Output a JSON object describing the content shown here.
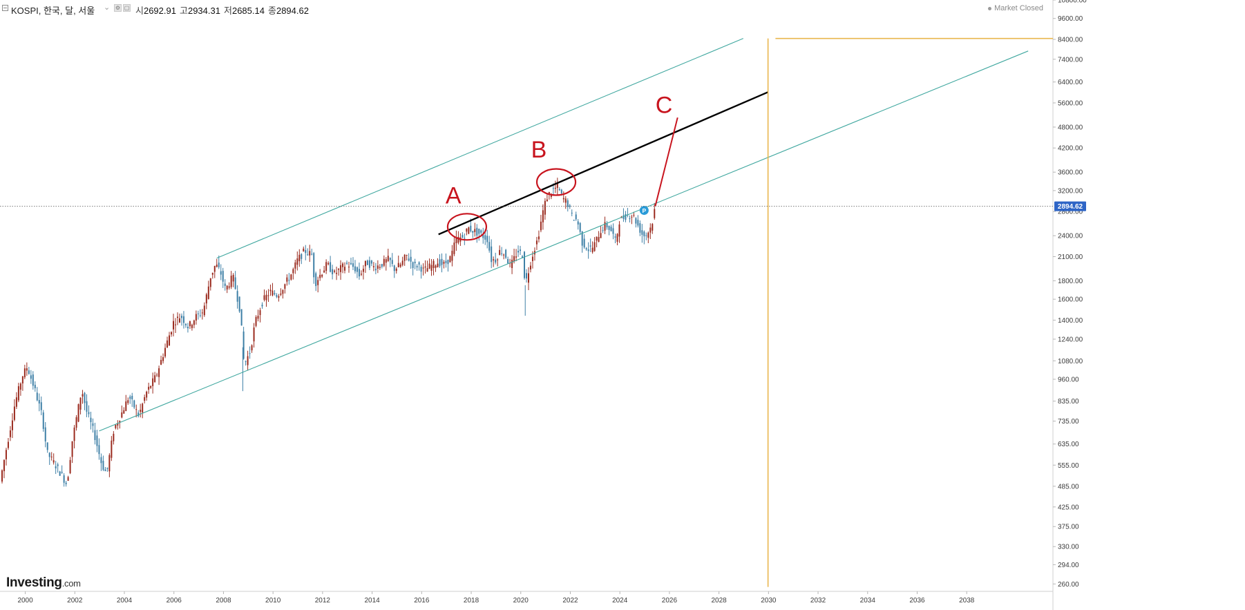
{
  "header": {
    "collapse_icon": "minus-box-icon",
    "symbol": "KOSPI, 한국, 달, 서울",
    "dropdown_icon": "chevron-down-icon",
    "settings_icon": "gear-icon",
    "ohlc": [
      {
        "label": "시",
        "value": "2692.91"
      },
      {
        "label": "고",
        "value": "2934.31"
      },
      {
        "label": "저",
        "value": "2685.14"
      },
      {
        "label": "종",
        "value": "2894.62"
      }
    ],
    "market_status": "Market Closed"
  },
  "logo": {
    "text": "Investing",
    "suffix": ".com"
  },
  "chart_data": {
    "type": "candlestick",
    "y_scale": "log",
    "ylim": [
      248,
      10800
    ],
    "xlim": [
      1999.0,
      2041.5
    ],
    "y_ticks": [
      "10800.00",
      "9600.00",
      "8400.00",
      "7400.00",
      "6400.00",
      "5600.00",
      "4800.00",
      "4200.00",
      "3600.00",
      "3200.00",
      "2800.00",
      "2400.00",
      "2100.00",
      "1800.00",
      "1600.00",
      "1400.00",
      "1240.00",
      "1080.00",
      "960.00",
      "835.00",
      "735.00",
      "635.00",
      "555.00",
      "485.00",
      "425.00",
      "375.00",
      "330.00",
      "294.00",
      "260.00"
    ],
    "x_ticks": [
      "2000",
      "2002",
      "2004",
      "2006",
      "2008",
      "2010",
      "2012",
      "2014",
      "2016",
      "2018",
      "2020",
      "2022",
      "2024",
      "2026",
      "2028",
      "2030",
      "2032",
      "2034",
      "2036",
      "2038"
    ],
    "last_price": {
      "label": "2894.62",
      "value": 2894.62,
      "color": "#2e65c6"
    },
    "colors": {
      "up": "#9a2a1e",
      "down": "#3d7fa6",
      "channel": "#3fa79f",
      "resistance": "#000000",
      "projection": "#c8141e",
      "target": "#e9b64d"
    },
    "anchors": [
      [
        1999.0,
        500
      ],
      [
        1999.3,
        640
      ],
      [
        1999.6,
        820
      ],
      [
        1999.9,
        980
      ],
      [
        2000.1,
        1040
      ],
      [
        2000.4,
        900
      ],
      [
        2000.7,
        760
      ],
      [
        2000.9,
        600
      ],
      [
        2001.2,
        560
      ],
      [
        2001.5,
        520
      ],
      [
        2001.7,
        490
      ],
      [
        2001.9,
        640
      ],
      [
        2002.3,
        900
      ],
      [
        2002.5,
        780
      ],
      [
        2002.8,
        680
      ],
      [
        2003.1,
        560
      ],
      [
        2003.3,
        525
      ],
      [
        2003.6,
        700
      ],
      [
        2003.9,
        770
      ],
      [
        2004.2,
        860
      ],
      [
        2004.4,
        810
      ],
      [
        2004.6,
        760
      ],
      [
        2004.9,
        880
      ],
      [
        2005.3,
        980
      ],
      [
        2005.8,
        1250
      ],
      [
        2006.0,
        1380
      ],
      [
        2006.3,
        1440
      ],
      [
        2006.6,
        1340
      ],
      [
        2006.9,
        1430
      ],
      [
        2007.2,
        1480
      ],
      [
        2007.5,
        1850
      ],
      [
        2007.7,
        2000
      ],
      [
        2007.9,
        1900
      ],
      [
        2008.1,
        1700
      ],
      [
        2008.4,
        1850
      ],
      [
        2008.7,
        1480
      ],
      [
        2008.85,
        1050
      ],
      [
        2009.1,
        1150
      ],
      [
        2009.3,
        1380
      ],
      [
        2009.6,
        1580
      ],
      [
        2009.9,
        1680
      ],
      [
        2010.2,
        1640
      ],
      [
        2010.5,
        1760
      ],
      [
        2010.8,
        1900
      ],
      [
        2011.0,
        2050
      ],
      [
        2011.3,
        2180
      ],
      [
        2011.6,
        2120
      ],
      [
        2011.7,
        1760
      ],
      [
        2011.9,
        1860
      ],
      [
        2012.2,
        2000
      ],
      [
        2012.5,
        1880
      ],
      [
        2012.8,
        1960
      ],
      [
        2013.0,
        2000
      ],
      [
        2013.3,
        1960
      ],
      [
        2013.5,
        1860
      ],
      [
        2013.8,
        2030
      ],
      [
        2014.1,
        1960
      ],
      [
        2014.4,
        2000
      ],
      [
        2014.7,
        2070
      ],
      [
        2014.9,
        1940
      ],
      [
        2015.2,
        2000
      ],
      [
        2015.4,
        2120
      ],
      [
        2015.7,
        1980
      ],
      [
        2015.9,
        1990
      ],
      [
        2016.1,
        1920
      ],
      [
        2016.4,
        1980
      ],
      [
        2016.7,
        2030
      ],
      [
        2016.9,
        1990
      ],
      [
        2017.2,
        2090
      ],
      [
        2017.4,
        2340
      ],
      [
        2017.7,
        2380
      ],
      [
        2017.9,
        2520
      ],
      [
        2018.1,
        2480
      ],
      [
        2018.4,
        2420
      ],
      [
        2018.7,
        2340
      ],
      [
        2018.8,
        2060
      ],
      [
        2019.0,
        2060
      ],
      [
        2019.2,
        2190
      ],
      [
        2019.4,
        2120
      ],
      [
        2019.6,
        1970
      ],
      [
        2019.9,
        2180
      ],
      [
        2020.1,
        2120
      ],
      [
        2020.2,
        1750
      ],
      [
        2020.45,
        2080
      ],
      [
        2020.7,
        2350
      ],
      [
        2020.95,
        2880
      ],
      [
        2021.1,
        3100
      ],
      [
        2021.3,
        3200
      ],
      [
        2021.5,
        3280
      ],
      [
        2021.7,
        3060
      ],
      [
        2021.9,
        2960
      ],
      [
        2022.1,
        2700
      ],
      [
        2022.3,
        2650
      ],
      [
        2022.5,
        2300
      ],
      [
        2022.75,
        2200
      ],
      [
        2022.95,
        2230
      ],
      [
        2023.2,
        2450
      ],
      [
        2023.45,
        2580
      ],
      [
        2023.7,
        2460
      ],
      [
        2023.85,
        2300
      ],
      [
        2024.0,
        2640
      ],
      [
        2024.3,
        2740
      ],
      [
        2024.55,
        2740
      ],
      [
        2024.75,
        2560
      ],
      [
        2024.95,
        2400
      ],
      [
        2025.1,
        2420
      ],
      [
        2025.3,
        2560
      ],
      [
        2025.45,
        2895
      ]
    ],
    "spikes": [
      [
        2008.8,
        890
      ],
      [
        2020.2,
        1440
      ]
    ],
    "overlays": {
      "channel_upper": [
        [
          2007.75,
          2080
        ],
        [
          2029.0,
          8450
        ]
      ],
      "channel_lower": [
        [
          2003.0,
          690
        ],
        [
          2040.5,
          7800
        ]
      ],
      "resistance": [
        [
          2016.7,
          2420
        ],
        [
          2030.0,
          6000
        ]
      ],
      "projection": [
        [
          2025.45,
          2900
        ],
        [
          2026.35,
          5100
        ]
      ],
      "target_vertical": [
        [
          2030.0,
          8450
        ],
        [
          2030.0,
          255
        ]
      ],
      "target_horizontal": [
        [
          2030.3,
          8450
        ],
        [
          2041.5,
          8450
        ]
      ],
      "circles": [
        {
          "name": "A",
          "x": 2017.85,
          "y": 2540
        },
        {
          "name": "B",
          "x": 2021.45,
          "y": 3380
        }
      ],
      "labels": [
        {
          "text": "A",
          "x": 2017.3,
          "y": 2950
        },
        {
          "text": "B",
          "x": 2020.75,
          "y": 3950
        },
        {
          "text": "C",
          "x": 2025.8,
          "y": 5250
        }
      ],
      "pivot_marker": {
        "text": "P",
        "x": 2025.0,
        "y": 2820
      }
    }
  }
}
